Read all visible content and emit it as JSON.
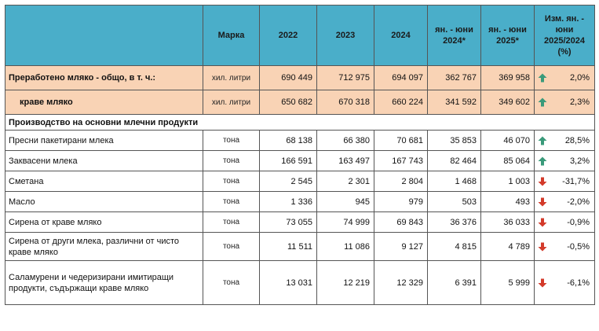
{
  "header": {
    "label_col": "",
    "unit_col": "Марка",
    "cols": [
      "2022",
      "2023",
      "2024",
      "ян. - юни 2024*",
      "ян. - юни 2025*",
      "Изм. ян. - юни 2025/2024 (%)"
    ]
  },
  "colors": {
    "header_bg": "#4aaec9",
    "total_bg": "#f9d3b5",
    "up": "#3a9a7a",
    "down": "#d33a2a"
  },
  "total_rows": [
    {
      "label": "Преработено мляко - общо, в т. ч.:",
      "unit": "хил. литри",
      "values": [
        "690 449",
        "712 975",
        "694 097",
        "362 767",
        "369 958"
      ],
      "trend": "up",
      "trend_icon": "arrow-up-icon",
      "change": "2,0%"
    },
    {
      "label": "краве мляко",
      "unit": "хил. литри",
      "values": [
        "650 682",
        "670 318",
        "660 224",
        "341 592",
        "349 602"
      ],
      "trend": "up",
      "trend_icon": "arrow-up-icon",
      "change": "2,3%"
    }
  ],
  "section_title": "Производство на основни млечни продукти",
  "rows": [
    {
      "label": "Пресни пакетирани млека",
      "unit": "тона",
      "values": [
        "68 138",
        "66 380",
        "70 681",
        "35 853",
        "46 070"
      ],
      "trend": "up",
      "trend_icon": "arrow-up-icon",
      "change": "28,5%"
    },
    {
      "label": "Заквасени млека",
      "unit": "тона",
      "values": [
        "166 591",
        "163 497",
        "167 743",
        "82 464",
        "85 064"
      ],
      "trend": "up",
      "trend_icon": "arrow-up-icon",
      "change": "3,2%"
    },
    {
      "label": "Сметана",
      "unit": "тона",
      "values": [
        "2 545",
        "2 301",
        "2 804",
        "1 468",
        "1 003"
      ],
      "trend": "down",
      "trend_icon": "arrow-down-icon",
      "change": "-31,7%"
    },
    {
      "label": "Масло",
      "unit": "тона",
      "values": [
        "1 336",
        "945",
        "979",
        "503",
        "493"
      ],
      "trend": "down",
      "trend_icon": "arrow-down-icon",
      "change": "-2,0%"
    },
    {
      "label": "Сирена от краве мляко",
      "unit": "тона",
      "values": [
        "73 055",
        "74 999",
        "69 843",
        "36 376",
        "36 033"
      ],
      "trend": "down",
      "trend_icon": "arrow-down-icon",
      "change": "-0,9%"
    },
    {
      "label": "Сирена от други млека, различни от чисто краве мляко",
      "unit": "тона",
      "values": [
        "11 511",
        "11 086",
        "9 127",
        "4 815",
        "4 789"
      ],
      "trend": "down",
      "trend_icon": "arrow-down-icon",
      "change": "-0,5%"
    },
    {
      "label": "Саламурени и чедеризирани имитиращи продукти, съдържащи краве мляко",
      "unit": "тона",
      "values": [
        "13 031",
        "12 219",
        "12 329",
        "6 391",
        "5 999"
      ],
      "trend": "down",
      "trend_icon": "arrow-down-icon",
      "change": "-6,1%"
    }
  ]
}
